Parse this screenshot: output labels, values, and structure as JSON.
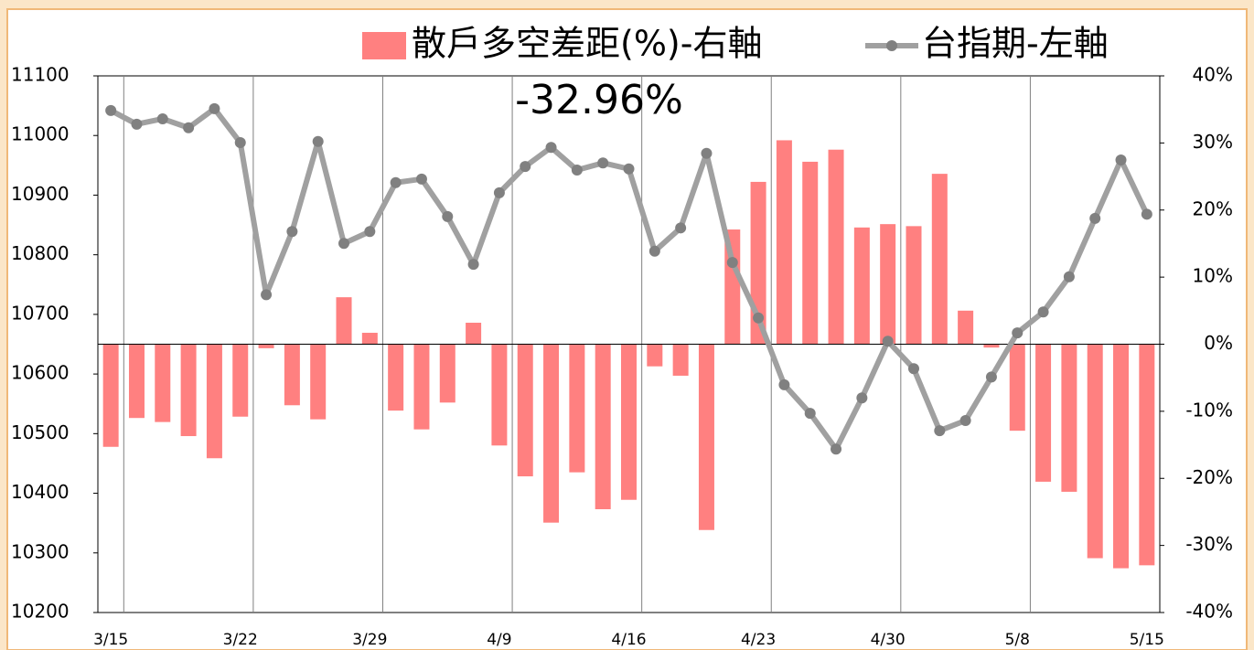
{
  "chart_data": {
    "type": "bar_line",
    "annotation": "-32.96%",
    "categories": [
      "3/15",
      null,
      null,
      null,
      null,
      "3/22",
      null,
      null,
      null,
      null,
      "3/29",
      null,
      null,
      null,
      null,
      "4/9",
      null,
      null,
      null,
      null,
      "4/16",
      null,
      null,
      null,
      null,
      "4/23",
      null,
      null,
      null,
      null,
      "4/30",
      null,
      null,
      null,
      null,
      "5/8",
      null,
      null,
      null,
      null,
      "5/15"
    ],
    "series": [
      {
        "name": "散戶多空差距(%)-右軸",
        "type": "bar",
        "axis": "y2",
        "color": "#ff8080",
        "values": [
          -15.3,
          -11.0,
          -11.6,
          -13.7,
          -17.0,
          -10.8,
          -0.6,
          -9.1,
          -11.2,
          7.0,
          1.7,
          -9.9,
          -12.7,
          -8.7,
          3.2,
          -15.1,
          -19.7,
          -26.6,
          -19.1,
          -24.6,
          -23.2,
          -3.3,
          -4.7,
          -27.7,
          17.1,
          24.2,
          30.4,
          27.2,
          29.0,
          17.4,
          17.9,
          17.6,
          25.4,
          5.0,
          -0.5,
          -12.9,
          -20.5,
          -22.0,
          -31.9,
          -33.4,
          -32.96
        ]
      },
      {
        "name": "台指期-左軸",
        "type": "line",
        "axis": "y",
        "color": "#a0a0a0",
        "values": [
          11042,
          11019,
          11028,
          11013,
          11045,
          10988,
          10733,
          10839,
          10990,
          10819,
          10839,
          10921,
          10927,
          10864,
          10784,
          10904,
          10948,
          10980,
          10942,
          10954,
          10944,
          10806,
          10845,
          10970,
          10787,
          10694,
          10582,
          10534,
          10474,
          10560,
          10655,
          10609,
          10505,
          10522,
          10595,
          10669,
          10704,
          10763,
          10861,
          10959,
          10868
        ]
      }
    ],
    "ylim": [
      10200,
      11100
    ],
    "yticks": [
      10200,
      10300,
      10400,
      10500,
      10600,
      10700,
      10800,
      10900,
      11000,
      11100
    ],
    "y2lim": [
      -40,
      40
    ],
    "y2ticks": [
      {
        "value": -40,
        "label": "-40%"
      },
      {
        "value": -30,
        "label": "-30%"
      },
      {
        "value": -20,
        "label": "-20%"
      },
      {
        "value": -10,
        "label": "-10%"
      },
      {
        "value": 0,
        "label": "0%"
      },
      {
        "value": 10,
        "label": "10%"
      },
      {
        "value": 20,
        "label": "20%"
      },
      {
        "value": 30,
        "label": "30%"
      },
      {
        "value": 40,
        "label": "40%"
      }
    ],
    "annotation_color": "#ff0000"
  }
}
